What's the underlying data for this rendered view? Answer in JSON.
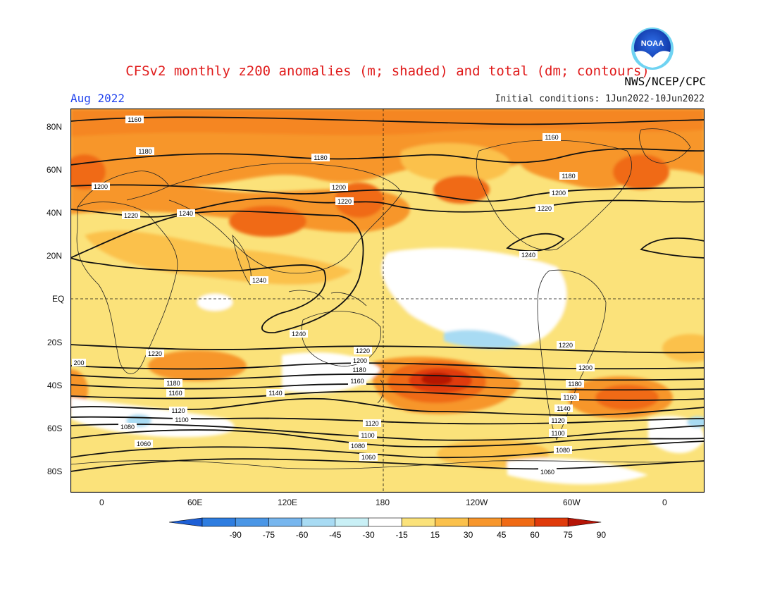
{
  "header": {
    "title": "CFSv2 monthly z200 anomalies (m; shaded) and total (dm; contours)",
    "agency": "NWS/NCEP/CPC",
    "month": "Aug 2022",
    "initial_conditions": "Initial conditions: 1Jun2022-10Jun2022",
    "logo_text": "NOAA"
  },
  "map": {
    "lat_labels": [
      "80N",
      "60N",
      "40N",
      "20N",
      "EQ",
      "20S",
      "40S",
      "60S",
      "80S"
    ],
    "lon_labels": [
      "0",
      "60E",
      "120E",
      "180",
      "120W",
      "60W",
      "0"
    ],
    "contour_labels": {
      "c1060": "1060",
      "c1080": "1080",
      "c1100": "1100",
      "c1120": "1120",
      "c1140": "1140",
      "c1160": "1160",
      "c1180": "1180",
      "c1200": "1200",
      "c1220": "1220",
      "c1240": "1240",
      "c200": "200"
    }
  },
  "colorbar": {
    "labels": [
      "-90",
      "-75",
      "-60",
      "-45",
      "-30",
      "-15",
      "15",
      "30",
      "45",
      "60",
      "75",
      "90"
    ],
    "colors": [
      "#1d5fd6",
      "#2e7de0",
      "#4a96e6",
      "#77b6ee",
      "#a8dbf3",
      "#c9f0f6",
      "#ffffff",
      "#fbe27a",
      "#fbc14c",
      "#f7962c",
      "#f06a14",
      "#e03a0a",
      "#b51406"
    ]
  },
  "colors": {
    "title": "#e01b1b",
    "month": "#2244ee"
  }
}
